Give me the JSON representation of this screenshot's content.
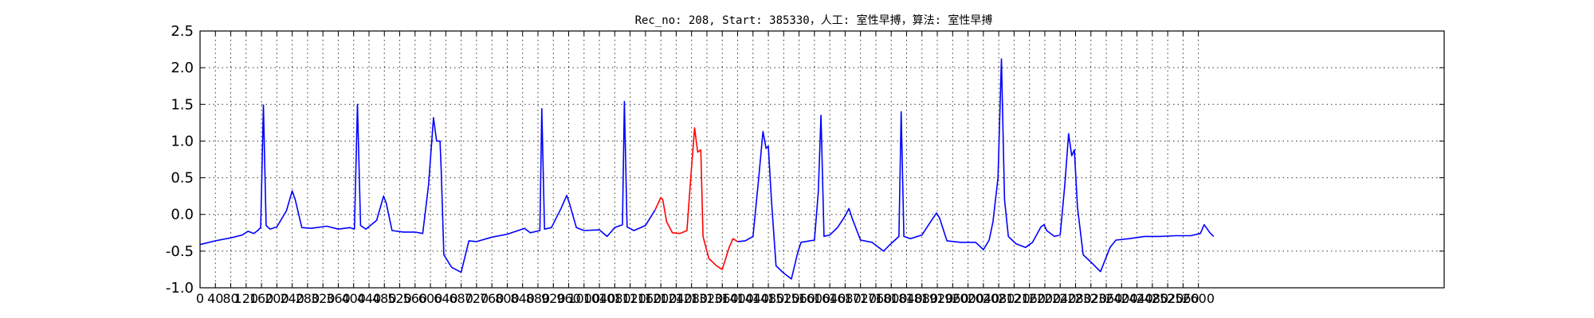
{
  "chart_data": {
    "type": "line",
    "title": "Rec_no: 208, Start: 385330，人工: 室性早搏，算法: 室性早搏",
    "xlabel": "",
    "ylabel": "",
    "xlim": [
      0,
      3240
    ],
    "ylim": [
      -1.0,
      2.5
    ],
    "grid": true,
    "xticks": [
      0,
      40,
      80,
      120,
      160,
      200,
      240,
      280,
      320,
      360,
      400,
      440,
      480,
      520,
      560,
      600,
      640,
      680,
      720,
      760,
      800,
      840,
      880,
      920,
      960,
      1000,
      1040,
      1080,
      1120,
      1160,
      1200,
      1240,
      1280,
      1320,
      1360,
      1400,
      1440,
      1480,
      1520,
      1560,
      1600,
      1640,
      1680,
      1720,
      1760,
      1800,
      1840,
      1880,
      1920,
      1960,
      2000,
      2040,
      2080,
      2120,
      2160,
      2200,
      2240,
      2280,
      2320,
      2360,
      2400,
      2440,
      2480,
      2520,
      2560,
      2600
    ],
    "yticks": [
      -1.0,
      -0.5,
      0.0,
      0.5,
      1.0,
      1.5,
      2.0,
      2.5
    ],
    "series": [
      {
        "color": "#0000ff",
        "points": [
          [
            0,
            -0.41
          ],
          [
            40,
            -0.36
          ],
          [
            80,
            -0.32
          ],
          [
            110,
            -0.28
          ],
          [
            125,
            -0.23
          ],
          [
            140,
            -0.26
          ],
          [
            150,
            -0.22
          ],
          [
            158,
            -0.18
          ],
          [
            165,
            1.49
          ],
          [
            172,
            -0.15
          ],
          [
            182,
            -0.2
          ],
          [
            200,
            -0.17
          ],
          [
            225,
            0.05
          ],
          [
            240,
            0.32
          ],
          [
            248,
            0.2
          ],
          [
            265,
            -0.18
          ],
          [
            290,
            -0.19
          ],
          [
            330,
            -0.16
          ],
          [
            360,
            -0.2
          ],
          [
            390,
            -0.18
          ],
          [
            402,
            -0.2
          ],
          [
            410,
            1.5
          ],
          [
            418,
            -0.15
          ],
          [
            432,
            -0.2
          ],
          [
            460,
            -0.08
          ],
          [
            478,
            0.25
          ],
          [
            485,
            0.15
          ],
          [
            500,
            -0.22
          ],
          [
            530,
            -0.24
          ],
          [
            560,
            -0.24
          ],
          [
            580,
            -0.26
          ],
          [
            595,
            0.4
          ],
          [
            608,
            1.32
          ],
          [
            616,
            1.0
          ],
          [
            625,
            1.0
          ],
          [
            628,
            0.6
          ],
          [
            635,
            -0.55
          ],
          [
            655,
            -0.72
          ],
          [
            680,
            -0.79
          ],
          [
            700,
            -0.36
          ],
          [
            720,
            -0.37
          ],
          [
            760,
            -0.31
          ],
          [
            800,
            -0.27
          ],
          [
            845,
            -0.19
          ],
          [
            860,
            -0.25
          ],
          [
            885,
            -0.22
          ],
          [
            890,
            1.44
          ],
          [
            897,
            -0.2
          ],
          [
            915,
            -0.18
          ],
          [
            940,
            0.08
          ],
          [
            955,
            0.26
          ],
          [
            962,
            0.15
          ],
          [
            980,
            -0.18
          ],
          [
            1000,
            -0.22
          ],
          [
            1040,
            -0.21
          ],
          [
            1060,
            -0.3
          ],
          [
            1080,
            -0.18
          ],
          [
            1100,
            -0.14
          ],
          [
            1105,
            1.54
          ],
          [
            1112,
            -0.17
          ],
          [
            1130,
            -0.22
          ],
          [
            1160,
            -0.15
          ],
          [
            1185,
            0.06
          ]
        ]
      },
      {
        "color": "#ff0000",
        "points": [
          [
            1185,
            0.06
          ],
          [
            1200,
            0.23
          ],
          [
            1205,
            0.2
          ],
          [
            1215,
            -0.1
          ],
          [
            1230,
            -0.25
          ],
          [
            1250,
            -0.26
          ],
          [
            1268,
            -0.22
          ],
          [
            1278,
            0.5
          ],
          [
            1288,
            1.18
          ],
          [
            1296,
            0.85
          ],
          [
            1304,
            0.88
          ],
          [
            1310,
            -0.3
          ],
          [
            1325,
            -0.6
          ],
          [
            1345,
            -0.7
          ],
          [
            1360,
            -0.75
          ],
          [
            1378,
            -0.45
          ],
          [
            1388,
            -0.33
          ],
          [
            1400,
            -0.37
          ]
        ]
      },
      {
        "color": "#0000ff",
        "points": [
          [
            1400,
            -0.37
          ],
          [
            1420,
            -0.36
          ],
          [
            1440,
            -0.3
          ],
          [
            1455,
            0.5
          ],
          [
            1466,
            1.13
          ],
          [
            1474,
            0.9
          ],
          [
            1480,
            0.93
          ],
          [
            1488,
            0.2
          ],
          [
            1500,
            -0.7
          ],
          [
            1520,
            -0.8
          ],
          [
            1540,
            -0.88
          ],
          [
            1555,
            -0.55
          ],
          [
            1565,
            -0.38
          ],
          [
            1600,
            -0.35
          ],
          [
            1610,
            0.3
          ],
          [
            1617,
            1.35
          ],
          [
            1625,
            -0.3
          ],
          [
            1640,
            -0.28
          ],
          [
            1660,
            -0.18
          ],
          [
            1680,
            -0.02
          ],
          [
            1690,
            0.08
          ],
          [
            1698,
            -0.05
          ],
          [
            1720,
            -0.35
          ],
          [
            1750,
            -0.38
          ],
          [
            1780,
            -0.5
          ],
          [
            1795,
            -0.42
          ],
          [
            1820,
            -0.3
          ],
          [
            1826,
            1.4
          ],
          [
            1833,
            -0.3
          ],
          [
            1850,
            -0.33
          ],
          [
            1880,
            -0.28
          ],
          [
            1900,
            -0.12
          ],
          [
            1918,
            0.02
          ],
          [
            1926,
            -0.05
          ],
          [
            1945,
            -0.36
          ],
          [
            1980,
            -0.38
          ],
          [
            2020,
            -0.38
          ],
          [
            2040,
            -0.48
          ],
          [
            2055,
            -0.35
          ],
          [
            2065,
            -0.1
          ],
          [
            2078,
            0.5
          ],
          [
            2087,
            2.12
          ],
          [
            2095,
            0.2
          ],
          [
            2105,
            -0.3
          ],
          [
            2125,
            -0.4
          ],
          [
            2150,
            -0.45
          ],
          [
            2168,
            -0.38
          ],
          [
            2190,
            -0.17
          ],
          [
            2198,
            -0.14
          ],
          [
            2205,
            -0.22
          ],
          [
            2225,
            -0.3
          ],
          [
            2240,
            -0.28
          ],
          [
            2252,
            0.4
          ],
          [
            2262,
            1.1
          ],
          [
            2270,
            0.8
          ],
          [
            2277,
            0.88
          ],
          [
            2285,
            0.1
          ],
          [
            2300,
            -0.55
          ],
          [
            2320,
            -0.65
          ],
          [
            2345,
            -0.78
          ],
          [
            2370,
            -0.45
          ],
          [
            2385,
            -0.35
          ],
          [
            2420,
            -0.33
          ],
          [
            2460,
            -0.3
          ],
          [
            2500,
            -0.3
          ],
          [
            2540,
            -0.29
          ],
          [
            2580,
            -0.29
          ],
          [
            2605,
            -0.26
          ],
          [
            2615,
            -0.14
          ],
          [
            2630,
            -0.25
          ],
          [
            2640,
            -0.3
          ]
        ]
      }
    ]
  }
}
